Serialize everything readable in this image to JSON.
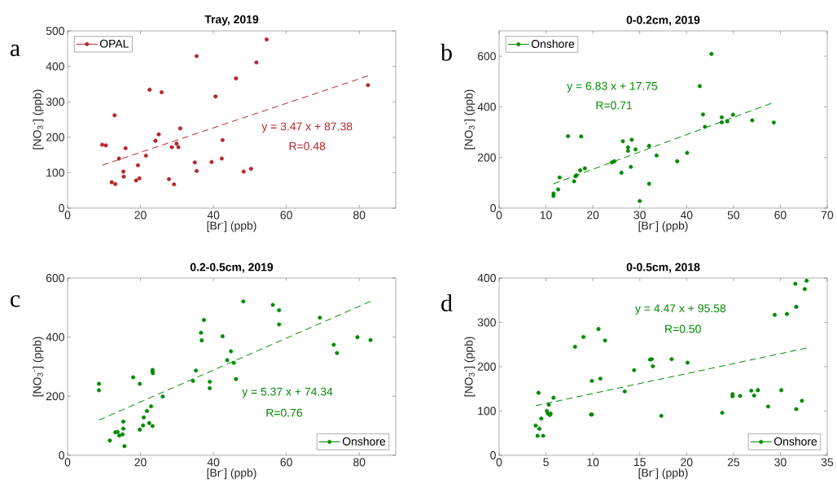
{
  "chart_data": [
    {
      "type": "scatter",
      "title": "Tray, 2019",
      "xlabel": "[Br$^{-}$] (ppb)",
      "ylabel": "[NO$_{3}$$^{-}$] (ppb)",
      "annotations": [
        "a",
        "y = 3.47 x + 87.38",
        "R=0.48"
      ],
      "xlim": [
        0,
        90
      ],
      "ylim": [
        0,
        500
      ],
      "xticks": [
        0,
        20,
        40,
        60,
        80
      ],
      "yticks": [
        0,
        100,
        200,
        300,
        400,
        500
      ],
      "legend": "top left",
      "series": [
        {
          "name": "OPAL",
          "color": "#b5262c",
          "marker": "circle",
          "x": [
            9.5,
            10.5,
            12.9,
            12.1,
            13.1,
            14.1,
            15.3,
            15.4,
            15.9,
            18.8,
            19.3,
            19.7,
            21.5,
            22.5,
            24.1,
            25.0,
            25.8,
            27.8,
            28.6,
            29.2,
            29.9,
            30.4,
            30.9,
            34.9,
            35.4,
            35.4,
            39.5,
            40.6,
            42.3,
            42.5,
            46.2,
            48.3,
            50.3,
            51.8,
            54.6,
            82.4
          ],
          "values": [
            179,
            177,
            262,
            73,
            68,
            140,
            103,
            89,
            169,
            78,
            121,
            84,
            148,
            334,
            190,
            208,
            327,
            82,
            172,
            67,
            182,
            172,
            225,
            129,
            429,
            105,
            130,
            315,
            140,
            192,
            366,
            103,
            111,
            411,
            476,
            347
          ]
        },
        {
          "type": "line",
          "color": "#b5262c",
          "marker": "none",
          "line_style": "dashed",
          "x": [
            9.5,
            82.4
          ],
          "values": [
            121,
            373
          ]
        }
      ]
    },
    {
      "type": "scatter",
      "title": "0-0.2cm, 2019",
      "xlabel": "[Br$^{-}$] (ppb)",
      "ylabel": "[NO$_{3}$$^{-}$] (ppb)",
      "annotations": [
        "b",
        "y = 6.83 x + 17.75",
        "R=0.71"
      ],
      "xlim": [
        0,
        70
      ],
      "ylim": [
        0,
        700
      ],
      "xticks": [
        0,
        10,
        20,
        30,
        40,
        50,
        60,
        70
      ],
      "yticks": [
        0,
        200,
        400,
        600
      ],
      "legend": "top left",
      "series": [
        {
          "name": "Onshore",
          "color": "#008a00",
          "marker": "circle",
          "x": [
            11.6,
            11.6,
            12.6,
            12.9,
            14.7,
            16.0,
            16.3,
            16.5,
            17.3,
            17.5,
            18.3,
            24.1,
            24.6,
            26.1,
            26.4,
            27.5,
            27.5,
            28.1,
            28.3,
            29.1,
            30.0,
            32.0,
            32.0,
            33.6,
            38.0,
            40.1,
            42.8,
            43.5,
            43.9,
            45.3,
            47.5,
            47.5,
            48.7,
            49.9,
            54.0,
            58.6
          ],
          "values": [
            58,
            48,
            74,
            121,
            284,
            106,
            126,
            130,
            149,
            283,
            157,
            181,
            185,
            140,
            264,
            240,
            226,
            163,
            270,
            232,
            28,
            96,
            246,
            208,
            185,
            218,
            482,
            370,
            321,
            609,
            359,
            339,
            343,
            369,
            347,
            338
          ]
        },
        {
          "type": "line",
          "color": "#008a00",
          "marker": "none",
          "line_style": "dashed",
          "x": [
            11.6,
            58.1
          ],
          "values": [
            96,
            414
          ]
        }
      ]
    },
    {
      "type": "scatter",
      "title": "0.2-0.5cm, 2019",
      "xlabel": "[Br$^{-}$] (ppb)",
      "ylabel": "[NO$_{3}$$^{-}$] (ppb)",
      "annotations": [
        "c",
        "y = 5.37 x + 74.34",
        "R=0.76"
      ],
      "xlim": [
        0,
        90
      ],
      "ylim": [
        0,
        600
      ],
      "xticks": [
        0,
        20,
        40,
        60,
        80
      ],
      "yticks": [
        0,
        200,
        400,
        600
      ],
      "legend": "bottom right",
      "series": [
        {
          "name": "Onshore",
          "color": "#008a00",
          "marker": "circle",
          "x": [
            8.6,
            8.6,
            11.6,
            13.1,
            13.7,
            14.2,
            15.1,
            15.3,
            15.3,
            15.6,
            18.0,
            19.8,
            19.8,
            20.7,
            20.9,
            21.8,
            22.4,
            22.9,
            23.3,
            23.3,
            23.3,
            23.4,
            26.1,
            34.4,
            35.2,
            36.6,
            36.8,
            37.4,
            39.0,
            39.0,
            42.5,
            43.8,
            44.8,
            45.6,
            46.2,
            48.2,
            56.3,
            58.0,
            58.0,
            69.2,
            73.0,
            73.9,
            79.5,
            83.1
          ],
          "values": [
            242,
            220,
            50,
            78,
            79,
            67,
            71,
            114,
            90,
            31,
            264,
            242,
            87,
            101,
            128,
            150,
            109,
            166,
            99,
            289,
            285,
            278,
            199,
            252,
            287,
            415,
            389,
            458,
            249,
            227,
            403,
            322,
            352,
            313,
            258,
            521,
            509,
            491,
            443,
            466,
            374,
            346,
            400,
            390
          ]
        },
        {
          "type": "line",
          "color": "#008a00",
          "marker": "none",
          "line_style": "dashed",
          "x": [
            8.6,
            83.1
          ],
          "values": [
            119,
            521
          ]
        }
      ]
    },
    {
      "type": "scatter",
      "title": "0-0.5cm, 2018",
      "xlabel": "[Br$^{-}$] (ppb)",
      "ylabel": "[NO$_{3}$$^{-}$] (ppb)",
      "annotations": [
        "d",
        "y = 4.47 x + 95.58",
        "R=0.50"
      ],
      "xlim": [
        0,
        35
      ],
      "ylim": [
        0,
        400
      ],
      "xticks": [
        0,
        5,
        10,
        15,
        20,
        25,
        30,
        35
      ],
      "yticks": [
        0,
        100,
        200,
        300,
        400
      ],
      "legend": "bottom right",
      "series": [
        {
          "name": "Onshore",
          "color": "#008a00",
          "marker": "circle",
          "x": [
            3.9,
            4.1,
            4.2,
            4.3,
            4.5,
            4.7,
            5.1,
            5.2,
            5.3,
            5.4,
            5.5,
            5.8,
            8.1,
            9.0,
            9.8,
            9.9,
            9.9,
            10.6,
            10.8,
            11.3,
            13.4,
            14.4,
            16.1,
            16.3,
            16.4,
            17.3,
            18.4,
            20.1,
            23.8,
            24.9,
            24.9,
            25.7,
            26.9,
            27.2,
            27.6,
            28.7,
            29.4,
            30.1,
            30.7,
            31.6,
            31.7,
            31.7,
            32.3,
            32.6,
            32.8
          ],
          "values": [
            67,
            44,
            141,
            60,
            83,
            44,
            100,
            94,
            114,
            91,
            94,
            130,
            245,
            267,
            92,
            168,
            92,
            285,
            173,
            259,
            144,
            192,
            216,
            217,
            201,
            89,
            217,
            209,
            96,
            133,
            138,
            134,
            146,
            135,
            147,
            110,
            317,
            147,
            319,
            387,
            104,
            335,
            123,
            375,
            394
          ]
        },
        {
          "type": "line",
          "color": "#008a00",
          "marker": "none",
          "line_style": "dashed",
          "x": [
            3.9,
            32.8
          ],
          "values": [
            112,
            242
          ]
        }
      ]
    }
  ]
}
